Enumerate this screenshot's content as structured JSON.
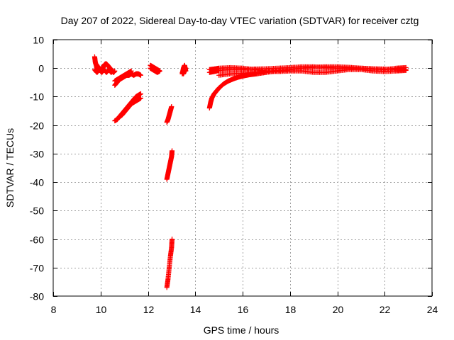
{
  "chart_data": {
    "type": "scatter",
    "title": "Day 207 of 2022, Sidereal Day-to-day VTEC variation (SDTVAR) for receiver cztg",
    "xlabel": "GPS time / hours",
    "ylabel": "SDTVAR / TECUs",
    "xlim": [
      8,
      24
    ],
    "ylim": [
      -80,
      10
    ],
    "xticks": [
      8,
      10,
      12,
      14,
      16,
      18,
      20,
      22,
      24
    ],
    "yticks": [
      10,
      0,
      -10,
      -20,
      -30,
      -40,
      -50,
      -60,
      -70,
      -80
    ],
    "grid": true,
    "marker": "plus",
    "series": [
      {
        "name": "SDTVAR",
        "color": "#ff0000",
        "segments": [
          {
            "x": [
              9.75,
              9.78,
              9.82,
              9.85,
              9.88,
              9.92,
              9.95,
              10.0,
              10.05,
              10.1,
              10.15,
              10.2,
              10.25,
              10.3,
              10.35,
              10.4,
              10.45,
              10.5,
              10.55
            ],
            "y": [
              4,
              2,
              1,
              0,
              0,
              0.5,
              0,
              -0.5,
              -1,
              0,
              1,
              1.5,
              1.5,
              1,
              0.5,
              0,
              -0.5,
              -1,
              -1.5
            ]
          },
          {
            "x": [
              9.75,
              9.8,
              9.85,
              9.9,
              9.95,
              10.0,
              10.05,
              10.1,
              10.15,
              10.2,
              10.25,
              10.3,
              10.35,
              10.4,
              10.45,
              10.5,
              10.55,
              10.6
            ],
            "y": [
              -0.5,
              -1,
              -1.5,
              -1,
              -0.5,
              -1,
              -1.5,
              -1,
              -0.5,
              -1,
              -1.5,
              -1,
              -0.5,
              -1,
              -1.5,
              -1,
              -1.5,
              -1
            ]
          },
          {
            "x": [
              10.6,
              10.7,
              10.8,
              10.9,
              11.0,
              11.1,
              11.2,
              11.3,
              11.4,
              11.5,
              11.6,
              11.7
            ],
            "y": [
              -6,
              -5,
              -4,
              -3.5,
              -3,
              -2.5,
              -2.5,
              -2,
              -2.5,
              -2,
              -2,
              -2.5
            ]
          },
          {
            "x": [
              10.6,
              10.7,
              10.8,
              10.9,
              11.0,
              11.1,
              11.2,
              11.3
            ],
            "y": [
              -4.5,
              -4,
              -3.5,
              -3,
              -2.5,
              -2,
              -1.5,
              -1
            ]
          },
          {
            "x": [
              10.6,
              10.7,
              10.8,
              10.9,
              11.0,
              11.1,
              11.2,
              11.3,
              11.4,
              11.5,
              11.6,
              11.7
            ],
            "y": [
              -18.5,
              -18,
              -17,
              -16,
              -15,
              -14,
              -13,
              -12,
              -11,
              -10,
              -9.5,
              -9
            ]
          },
          {
            "x": [
              10.7,
              10.8,
              10.9,
              11.0,
              11.1,
              11.2,
              11.3,
              11.4,
              11.5,
              11.6,
              11.7
            ],
            "y": [
              -18,
              -17,
              -16.5,
              -15.5,
              -14.5,
              -13.5,
              -12.5,
              -12,
              -11.5,
              -11,
              -10.5
            ]
          },
          {
            "x": [
              12.1,
              12.2,
              12.3,
              12.4,
              12.5
            ],
            "y": [
              1,
              0.5,
              0,
              -0.5,
              -1
            ]
          },
          {
            "x": [
              12.1,
              12.2,
              12.3,
              12.4,
              12.5
            ],
            "y": [
              0,
              -0.5,
              -1,
              -1.5,
              -1
            ]
          },
          {
            "x": [
              12.8,
              12.85,
              12.9,
              12.95,
              13.0
            ],
            "y": [
              -19,
              -18,
              -16.5,
              -15,
              -13.5
            ]
          },
          {
            "x": [
              12.8,
              12.85,
              12.9,
              12.95,
              13.0,
              13.02
            ],
            "y": [
              -39,
              -37,
              -35,
              -33,
              -31,
              -29
            ]
          },
          {
            "x": [
              12.8,
              12.85,
              12.9,
              12.95,
              13.0,
              13.02
            ],
            "y": [
              -77,
              -74,
              -70,
              -66,
              -63,
              -60
            ]
          },
          {
            "x": [
              13.45,
              13.5,
              13.55,
              13.6
            ],
            "y": [
              -2,
              0,
              1,
              -1
            ]
          },
          {
            "x": [
              13.45,
              13.5,
              13.55,
              13.6
            ],
            "y": [
              -1.5,
              -2,
              -1,
              0
            ]
          },
          {
            "x": [
              14.6,
              14.65,
              14.7,
              14.8,
              14.9,
              15.0,
              15.2,
              15.4,
              15.6,
              15.8,
              16.0,
              16.3,
              16.6,
              17.0,
              17.5,
              18.0
            ],
            "y": [
              -14,
              -12,
              -10.5,
              -9,
              -8,
              -7,
              -5.5,
              -4.5,
              -3.8,
              -3.2,
              -2.8,
              -2.3,
              -2,
              -1.5,
              -1,
              -0.5
            ]
          },
          {
            "x": [
              14.6,
              14.8,
              15.0,
              15.5,
              16.0,
              16.5,
              17.0,
              17.5,
              18.0,
              18.5,
              19.0,
              19.5,
              20.0,
              20.5,
              21.0,
              21.5,
              22.0,
              22.5,
              22.9
            ],
            "y": [
              -1.5,
              -1.2,
              -0.8,
              -0.5,
              -0.5,
              -0.3,
              -0.2,
              0,
              0.2,
              0.5,
              0.5,
              0.2,
              0,
              0,
              0,
              -0.2,
              -0.3,
              -0.5,
              -0.5
            ]
          },
          {
            "x": [
              14.6,
              14.8,
              15.0,
              15.5,
              16.0,
              16.5,
              17.0,
              17.5,
              18.0,
              18.5,
              19.0,
              19.5,
              20.0,
              20.5,
              21.0,
              21.5,
              22.0,
              22.5,
              22.9
            ],
            "y": [
              -0.5,
              -0.3,
              0,
              0.2,
              0,
              -0.5,
              -1,
              -1.2,
              -1,
              -1,
              -1.5,
              -1.5,
              -1,
              -0.5,
              -0.5,
              -1,
              -1.2,
              -1,
              -0.8
            ]
          },
          {
            "x": [
              15.0,
              15.5,
              16.0,
              16.5,
              17.0,
              17.5,
              18.0,
              18.5,
              19.0,
              19.5,
              20.0,
              20.5,
              21.0,
              21.5,
              22.0,
              22.5,
              22.9
            ],
            "y": [
              -2.5,
              -2,
              -1.8,
              -1.5,
              -1.2,
              -0.8,
              -0.5,
              0,
              0.3,
              0.5,
              0.5,
              0.3,
              0,
              -0.3,
              -0.5,
              0,
              0.2
            ]
          }
        ]
      }
    ]
  }
}
